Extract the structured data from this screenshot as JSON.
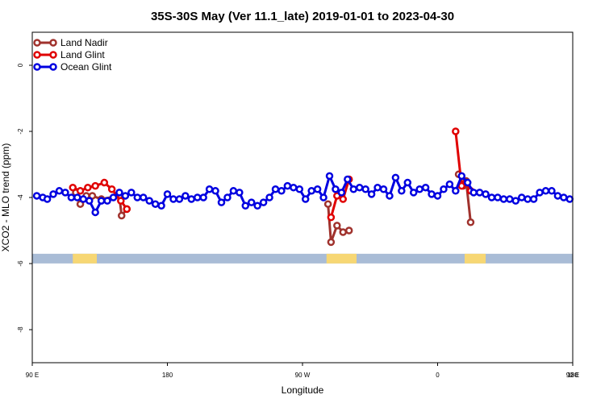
{
  "chart_data": {
    "type": "line",
    "title": "35S-30S May (Ver 11.1_late)   2019-01-01 to 2023-04-30",
    "xlabel": "Longitude",
    "ylabel": "XCO2 - MLO trend (ppm)",
    "xlim": [
      90,
      450
    ],
    "ylim": [
      -9,
      1.0
    ],
    "x_ticks": [
      {
        "value": 90,
        "label": "90 E"
      },
      {
        "value": 180,
        "label": "180"
      },
      {
        "value": 270,
        "label": "90 W"
      },
      {
        "value": 360,
        "label": "0"
      },
      {
        "value": 450,
        "label": "90 E"
      }
    ],
    "x_ticks_right": [
      {
        "value": 450,
        "label": "180"
      }
    ],
    "y_ticks": [
      {
        "value": 0,
        "label": "0"
      },
      {
        "value": -2,
        "label": "-2"
      },
      {
        "value": -4,
        "label": "-4"
      },
      {
        "value": -6,
        "label": "-6"
      },
      {
        "value": -8,
        "label": "-8"
      }
    ],
    "legend": {
      "position": "top-left"
    },
    "grid": false,
    "colors": {
      "ocean_band": "#a9bcd6",
      "land_band": "#f7d774",
      "land_nadir": "#a0322d",
      "land_glint": "#e00000",
      "ocean_glint": "#0000e0"
    },
    "land_band": {
      "y": -5.85,
      "segments": [
        [
          117,
          133
        ],
        [
          286,
          306
        ],
        [
          378,
          392
        ],
        [
          474,
          510
        ]
      ]
    },
    "series": [
      {
        "name": "Land Nadir",
        "color": "#a0322d",
        "segments": [
          [
            [
              119,
              -3.85
            ],
            [
              122,
              -4.2
            ],
            [
              126,
              -3.95
            ],
            [
              130,
              -3.95
            ],
            [
              136,
              -4.05
            ],
            [
              148,
              -3.95
            ],
            [
              149.5,
              -4.55
            ],
            [
              153,
              -4.35
            ]
          ],
          [
            [
              287,
              -4.2
            ],
            [
              289,
              -5.35
            ],
            [
              293,
              -4.85
            ],
            [
              297,
              -5.05
            ],
            [
              301,
              -5.0
            ]
          ],
          [
            [
              374,
              -3.3
            ],
            [
              377,
              -3.65
            ],
            [
              379,
              -3.5
            ],
            [
              382,
              -4.75
            ]
          ],
          [
            [
              470,
              -3.75
            ],
            [
              474,
              -3.9
            ],
            [
              477,
              -4.2
            ],
            [
              480,
              -3.9
            ],
            [
              485,
              -4.0
            ],
            [
              490,
              -3.95
            ],
            [
              494,
              -4.55
            ],
            [
              497,
              -4.4
            ]
          ]
        ]
      },
      {
        "name": "Land Glint",
        "color": "#e00000",
        "segments": [
          [
            [
              117,
              -3.7
            ],
            [
              122,
              -3.8
            ],
            [
              127,
              -3.7
            ],
            [
              132,
              -3.65
            ],
            [
              138,
              -3.55
            ],
            [
              143,
              -3.75
            ],
            [
              149,
              -4.1
            ],
            [
              153,
              -4.35
            ]
          ],
          [
            [
              289,
              -4.6
            ],
            [
              293,
              -3.95
            ],
            [
              297,
              -4.05
            ],
            [
              301,
              -3.45
            ]
          ],
          [
            [
              372,
              -2.0
            ],
            [
              376,
              -3.65
            ],
            [
              379,
              -3.55
            ],
            [
              382,
              -3.8
            ]
          ],
          [
            [
              470,
              -3.7
            ],
            [
              474,
              -3.8
            ],
            [
              477,
              -3.75
            ],
            [
              480,
              -3.7
            ],
            [
              483,
              -3.65
            ],
            [
              487,
              -3.55
            ],
            [
              491,
              -4.0
            ],
            [
              495,
              -4.25
            ],
            [
              498,
              -4.35
            ]
          ]
        ]
      },
      {
        "name": "Ocean Glint",
        "color": "#0000e0",
        "segments": [
          [
            [
              93,
              -3.95
            ],
            [
              97,
              -4.0
            ],
            [
              100,
              -4.05
            ],
            [
              104,
              -3.9
            ],
            [
              108,
              -3.8
            ],
            [
              112,
              -3.85
            ],
            [
              116,
              -4.0
            ],
            [
              120,
              -4.0
            ],
            [
              124,
              -4.05
            ],
            [
              128,
              -4.1
            ],
            [
              132,
              -4.45
            ],
            [
              136,
              -4.1
            ],
            [
              140,
              -4.1
            ],
            [
              144,
              -4.0
            ],
            [
              148,
              -3.85
            ],
            [
              152,
              -3.95
            ],
            [
              156,
              -3.85
            ],
            [
              160,
              -4.0
            ],
            [
              164,
              -4.0
            ],
            [
              168,
              -4.1
            ],
            [
              172,
              -4.2
            ],
            [
              176,
              -4.25
            ],
            [
              180,
              -3.9
            ],
            [
              184,
              -4.05
            ],
            [
              188,
              -4.05
            ],
            [
              192,
              -3.95
            ],
            [
              196,
              -4.05
            ],
            [
              200,
              -4.0
            ],
            [
              204,
              -4.0
            ],
            [
              208,
              -3.75
            ],
            [
              212,
              -3.8
            ],
            [
              216,
              -4.15
            ],
            [
              220,
              -4.0
            ],
            [
              224,
              -3.8
            ],
            [
              228,
              -3.85
            ],
            [
              232,
              -4.25
            ],
            [
              236,
              -4.15
            ],
            [
              240,
              -4.25
            ],
            [
              244,
              -4.15
            ],
            [
              248,
              -4.0
            ],
            [
              252,
              -3.75
            ],
            [
              256,
              -3.8
            ],
            [
              260,
              -3.65
            ],
            [
              264,
              -3.7
            ],
            [
              268,
              -3.75
            ],
            [
              272,
              -4.05
            ],
            [
              276,
              -3.8
            ],
            [
              280,
              -3.75
            ],
            [
              284,
              -4.0
            ],
            [
              288,
              -3.35
            ],
            [
              292,
              -3.75
            ],
            [
              296,
              -3.85
            ],
            [
              300,
              -3.45
            ],
            [
              304,
              -3.75
            ],
            [
              308,
              -3.7
            ],
            [
              312,
              -3.75
            ],
            [
              316,
              -3.9
            ],
            [
              320,
              -3.7
            ],
            [
              324,
              -3.75
            ],
            [
              328,
              -3.95
            ],
            [
              332,
              -3.4
            ],
            [
              336,
              -3.8
            ],
            [
              340,
              -3.55
            ],
            [
              344,
              -3.85
            ],
            [
              348,
              -3.75
            ],
            [
              352,
              -3.7
            ],
            [
              356,
              -3.9
            ],
            [
              360,
              -3.95
            ],
            [
              364,
              -3.75
            ],
            [
              368,
              -3.6
            ],
            [
              372,
              -3.8
            ],
            [
              376,
              -3.35
            ],
            [
              380,
              -3.55
            ],
            [
              384,
              -3.85
            ],
            [
              388,
              -3.85
            ],
            [
              392,
              -3.9
            ],
            [
              396,
              -4.0
            ],
            [
              400,
              -4.0
            ],
            [
              404,
              -4.05
            ],
            [
              408,
              -4.05
            ],
            [
              412,
              -4.1
            ],
            [
              416,
              -4.0
            ],
            [
              420,
              -4.05
            ],
            [
              424,
              -4.05
            ],
            [
              428,
              -3.85
            ],
            [
              432,
              -3.8
            ],
            [
              436,
              -3.8
            ],
            [
              440,
              -3.95
            ],
            [
              444,
              -4.0
            ],
            [
              448,
              -4.05
            ],
            [
              452,
              -3.85
            ],
            [
              456,
              -3.95
            ],
            [
              460,
              -3.75
            ],
            [
              464,
              -3.85
            ],
            [
              468,
              -3.95
            ]
          ]
        ]
      }
    ]
  }
}
